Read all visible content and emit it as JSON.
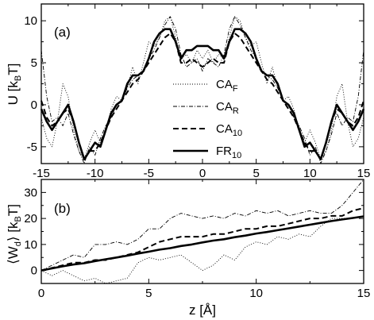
{
  "chart_data": [
    {
      "type": "line",
      "panel_label": "(a)",
      "xlabel": "",
      "ylabel": "U [k",
      "ylabel_sub": "B",
      "ylabel_tail": "T]",
      "xlim": [
        -15,
        15
      ],
      "ylim": [
        -7,
        12
      ],
      "xticks": [
        -15,
        -10,
        -5,
        0,
        5,
        10,
        15
      ],
      "yticks": [
        -5,
        0,
        5,
        10
      ],
      "xtick_labels": [
        "-15",
        "-10",
        "-5",
        "0",
        "5",
        "10",
        "15"
      ],
      "ytick_labels": [
        "-5",
        "0",
        "5",
        "10"
      ],
      "grid": false,
      "legend_placement": "center-right",
      "series": [
        {
          "name": "CA_F",
          "label_main": "CA",
          "label_sub": "F",
          "style": "dotted",
          "x": [
            -15,
            -14.5,
            -14,
            -13.5,
            -13,
            -12.5,
            -12,
            -11.5,
            -11,
            -10.5,
            -10,
            -9.5,
            -9,
            -8.5,
            -8,
            -7.5,
            -7,
            -6.5,
            -6,
            -5.5,
            -5,
            -4.5,
            -4,
            -3.5,
            -3,
            -2.5,
            -2,
            -1.5,
            -1,
            -0.5,
            0,
            0.5,
            1,
            1.5,
            2,
            2.5,
            3,
            3.5,
            4,
            4.5,
            5,
            5.5,
            6,
            6.5,
            7,
            7.5,
            8,
            8.5,
            9,
            9.5,
            10,
            10.5,
            11,
            11.5,
            12,
            12.5,
            13,
            13.5,
            14,
            14.5,
            15
          ],
          "y": [
            -1.5,
            -4.0,
            -5.0,
            -2.0,
            2.5,
            1.0,
            -3.0,
            -5.5,
            -6.5,
            -4.5,
            -3.0,
            -4.5,
            -3.0,
            -0.5,
            1.0,
            0.5,
            2.0,
            4.5,
            2.5,
            5.0,
            7.5,
            7.0,
            8.0,
            10.0,
            10.5,
            8.0,
            5.5,
            6.0,
            5.0,
            6.5,
            5.5,
            6.5,
            5.0,
            6.0,
            5.5,
            8.0,
            10.5,
            10.0,
            8.0,
            7.0,
            7.5,
            5.0,
            2.5,
            4.5,
            2.0,
            0.5,
            1.0,
            -0.5,
            -3.0,
            -4.5,
            -3.0,
            -4.5,
            -6.5,
            -5.5,
            -3.0,
            1.0,
            2.5,
            -2.0,
            -5.0,
            -4.0,
            -1.5
          ]
        },
        {
          "name": "CA_R",
          "label_main": "CA",
          "label_sub": "R",
          "style": "dashdot",
          "x": [
            -15,
            -14.5,
            -14,
            -13.5,
            -13,
            -12.5,
            -12,
            -11.5,
            -11,
            -10.5,
            -10,
            -9.5,
            -9,
            -8.5,
            -8,
            -7.5,
            -7,
            -6.5,
            -6,
            -5.5,
            -5,
            -4.5,
            -4,
            -3.5,
            -3,
            -2.5,
            -2,
            -1.5,
            -1,
            -0.5,
            0,
            0.5,
            1,
            1.5,
            2,
            2.5,
            3,
            3.5,
            4,
            4.5,
            5,
            5.5,
            6,
            6.5,
            7,
            7.5,
            8,
            8.5,
            9,
            9.5,
            10,
            10.5,
            11,
            11.5,
            12,
            12.5,
            13,
            13.5,
            14,
            14.5,
            15
          ],
          "y": [
            6.5,
            1.0,
            -2.0,
            -1.5,
            -2.5,
            -1.0,
            -3.5,
            -5.5,
            -7.0,
            -5.0,
            -6.0,
            -4.0,
            -2.5,
            -1.5,
            0.0,
            0.5,
            2.0,
            3.0,
            3.5,
            4.0,
            5.5,
            6.5,
            8.0,
            9.5,
            10.5,
            9.0,
            6.0,
            4.5,
            5.0,
            5.5,
            4.0,
            5.5,
            5.0,
            4.5,
            6.0,
            9.0,
            10.5,
            9.5,
            8.0,
            6.5,
            5.5,
            4.0,
            3.5,
            3.0,
            2.0,
            0.5,
            0.0,
            -1.5,
            -2.5,
            -4.0,
            -6.0,
            -5.0,
            -7.0,
            -5.5,
            -3.5,
            -1.0,
            -2.5,
            -1.5,
            -2.0,
            1.0,
            6.5
          ]
        },
        {
          "name": "CA_10",
          "label_main": "CA",
          "label_sub": "10",
          "style": "dashed",
          "x": [
            -15,
            -14.5,
            -14,
            -13.5,
            -13,
            -12.5,
            -12,
            -11.5,
            -11,
            -10.5,
            -10,
            -9.5,
            -9,
            -8.5,
            -8,
            -7.5,
            -7,
            -6.5,
            -6,
            -5.5,
            -5,
            -4.5,
            -4,
            -3.5,
            -3,
            -2.5,
            -2,
            -1.5,
            -1,
            -0.5,
            0,
            0.5,
            1,
            1.5,
            2,
            2.5,
            3,
            3.5,
            4,
            4.5,
            5,
            5.5,
            6,
            6.5,
            7,
            7.5,
            8,
            8.5,
            9,
            9.5,
            10,
            10.5,
            11,
            11.5,
            12,
            12.5,
            13,
            13.5,
            14,
            14.5,
            15
          ],
          "y": [
            0.5,
            -1.5,
            -2.5,
            -2.0,
            -1.0,
            -0.5,
            -2.0,
            -4.5,
            -6.5,
            -5.5,
            -5.5,
            -4.5,
            -3.0,
            -1.5,
            -0.5,
            0.5,
            1.5,
            2.5,
            3.0,
            4.0,
            5.0,
            6.0,
            7.0,
            8.0,
            8.5,
            7.5,
            5.0,
            5.0,
            5.5,
            5.0,
            4.5,
            5.0,
            5.5,
            5.0,
            5.0,
            7.5,
            8.5,
            8.0,
            7.0,
            6.0,
            5.0,
            4.0,
            3.0,
            2.5,
            1.5,
            0.5,
            -0.5,
            -1.5,
            -3.0,
            -4.5,
            -5.5,
            -5.5,
            -6.5,
            -4.5,
            -2.0,
            -0.5,
            -1.0,
            -2.0,
            -2.5,
            -1.5,
            0.5
          ]
        },
        {
          "name": "FR_10",
          "label_main": "FR",
          "label_sub": "10",
          "style": "solid",
          "x": [
            -15,
            -14.5,
            -14,
            -13.5,
            -13,
            -12.5,
            -12,
            -11.5,
            -11,
            -10.5,
            -10,
            -9.5,
            -9,
            -8.5,
            -8,
            -7.5,
            -7,
            -6.5,
            -6,
            -5.5,
            -5,
            -4.5,
            -4,
            -3.5,
            -3,
            -2.5,
            -2,
            -1.5,
            -1,
            -0.5,
            0,
            0.5,
            1,
            1.5,
            2,
            2.5,
            3,
            3.5,
            4,
            4.5,
            5,
            5.5,
            6,
            6.5,
            7,
            7.5,
            8,
            8.5,
            9,
            9.5,
            10,
            10.5,
            11,
            11.5,
            12,
            12.5,
            13,
            13.5,
            14,
            14.5,
            15
          ],
          "y": [
            -0.5,
            -2.0,
            -3.0,
            -2.0,
            -1.0,
            0.0,
            -2.0,
            -4.5,
            -6.5,
            -5.5,
            -4.5,
            -5.0,
            -3.0,
            -1.0,
            0.0,
            0.5,
            2.5,
            3.5,
            3.5,
            4.0,
            5.5,
            7.5,
            8.5,
            9.0,
            9.0,
            7.5,
            5.5,
            6.5,
            6.5,
            7.0,
            7.0,
            7.0,
            6.5,
            6.5,
            5.5,
            7.5,
            9.0,
            9.0,
            8.5,
            7.5,
            5.5,
            4.0,
            3.5,
            3.5,
            2.5,
            0.5,
            0.0,
            -1.0,
            -3.0,
            -5.0,
            -4.5,
            -5.5,
            -6.5,
            -4.5,
            -2.0,
            0.0,
            -1.0,
            -2.0,
            -3.0,
            -2.0,
            -0.5
          ]
        }
      ]
    },
    {
      "type": "line",
      "panel_label": "(b)",
      "xlabel": "z [Å]",
      "ylabel": "⟨W",
      "ylabel_sub": "d",
      "ylabel_tail": "⟩ [k",
      "ylabel_sub2": "B",
      "ylabel_tail2": "T]",
      "xlim": [
        0,
        15
      ],
      "ylim": [
        -5,
        35
      ],
      "xticks": [
        0,
        5,
        10,
        15
      ],
      "yticks": [
        0,
        10,
        20,
        30
      ],
      "xtick_labels": [
        "0",
        "5",
        "10",
        "15"
      ],
      "ytick_labels": [
        "0",
        "10",
        "20",
        "30"
      ],
      "grid": false,
      "series": [
        {
          "name": "CA_F",
          "style": "dotted",
          "x": [
            0,
            0.5,
            1,
            1.5,
            2,
            2.5,
            3,
            3.5,
            4,
            4.5,
            5,
            5.5,
            6,
            6.5,
            7,
            7.5,
            8,
            8.5,
            9,
            9.5,
            10,
            10.5,
            11,
            11.5,
            12,
            12.5,
            13,
            13.5,
            14,
            14.5,
            15
          ],
          "y": [
            0,
            -2,
            0,
            -2,
            -4,
            -3,
            -5,
            -4,
            -3,
            3,
            5,
            4,
            5,
            6,
            3,
            0,
            2,
            6,
            4,
            9,
            11,
            10,
            13,
            12,
            14,
            13,
            17,
            20,
            20,
            20,
            21
          ]
        },
        {
          "name": "CA_R",
          "style": "dashdot",
          "x": [
            0,
            0.5,
            1,
            1.5,
            2,
            2.5,
            3,
            3.5,
            4,
            4.5,
            5,
            5.5,
            6,
            6.5,
            7,
            7.5,
            8,
            8.5,
            9,
            9.5,
            10,
            10.5,
            11,
            11.5,
            12,
            12.5,
            13,
            13.5,
            14,
            14.5,
            15
          ],
          "y": [
            0,
            2,
            4,
            6,
            5,
            10,
            10,
            11,
            10,
            12,
            16,
            16,
            20,
            22,
            21,
            20,
            21,
            20,
            22,
            21,
            23,
            22,
            23,
            21,
            22,
            23,
            22,
            22,
            25,
            30,
            35
          ]
        },
        {
          "name": "CA_10",
          "style": "dashed",
          "x": [
            0,
            0.5,
            1,
            1.5,
            2,
            2.5,
            3,
            3.5,
            4,
            4.5,
            5,
            5.5,
            6,
            6.5,
            7,
            7.5,
            8,
            8.5,
            9,
            9.5,
            10,
            10.5,
            11,
            11.5,
            12,
            12.5,
            13,
            13.5,
            14,
            14.5,
            15
          ],
          "y": [
            0,
            1,
            2,
            3,
            3,
            4,
            4,
            5,
            6,
            7,
            9,
            11,
            12,
            13,
            13,
            13,
            14,
            14,
            15,
            16,
            16,
            17,
            17,
            18,
            19,
            20,
            20,
            21,
            21,
            23,
            24
          ]
        },
        {
          "name": "FR_10",
          "style": "solid",
          "x": [
            0,
            0.5,
            1,
            1.5,
            2,
            2.5,
            3,
            3.5,
            4,
            4.5,
            5,
            5.5,
            6,
            6.5,
            7,
            7.5,
            8,
            8.5,
            9,
            9.5,
            10,
            10.5,
            11,
            11.5,
            12,
            12.5,
            13,
            13.5,
            14,
            14.5,
            15
          ],
          "y": [
            0,
            0.8,
            1.6,
            2.3,
            2.8,
            3.6,
            4.3,
            5.0,
            5.7,
            6.5,
            7.2,
            8.0,
            8.6,
            9.4,
            10.0,
            10.8,
            11.5,
            12.0,
            12.8,
            13.4,
            14.2,
            14.8,
            15.5,
            16.2,
            16.9,
            17.6,
            18.3,
            19.0,
            19.6,
            20.2,
            20.8
          ]
        }
      ]
    }
  ]
}
